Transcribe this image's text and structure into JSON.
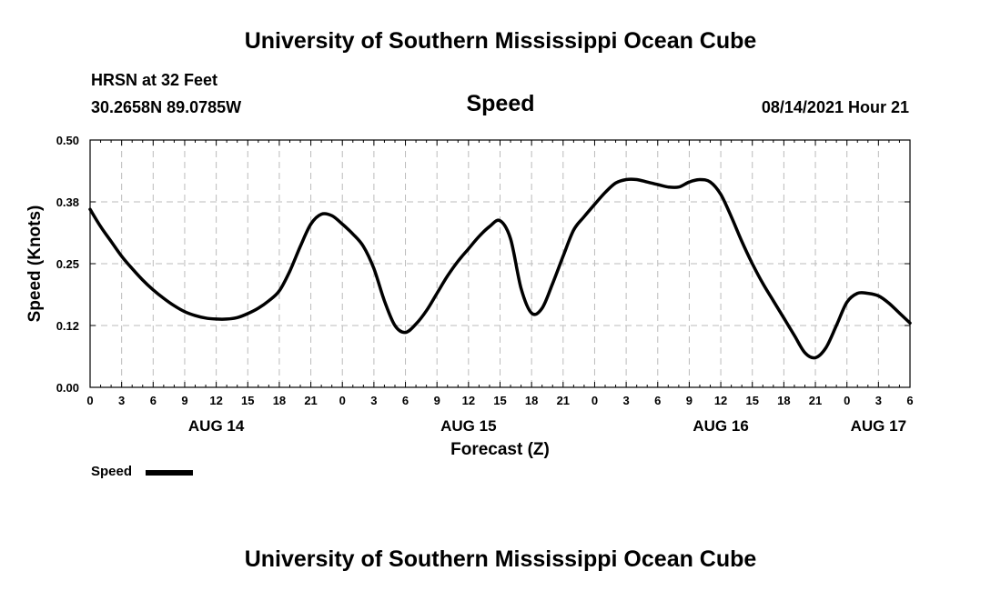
{
  "header": {
    "title_top": "University of Southern Mississippi Ocean Cube",
    "station": "HRSN at 32 Feet",
    "coords": "30.2658N  89.0785W",
    "datetime": "08/14/2021 Hour 21",
    "title_bottom": "University of Southern Mississippi Ocean Cube"
  },
  "legend": {
    "label": "Speed"
  },
  "chart_data": {
    "type": "line",
    "title": "Speed",
    "xlabel": "Forecast (Z)",
    "ylabel": "Speed (Knots)",
    "x_unit": "hours since AUG 14 00Z",
    "xlim": [
      0,
      78
    ],
    "ylim": [
      0,
      0.5
    ],
    "grid": true,
    "y_ticks": [
      0.0,
      0.125,
      0.25,
      0.375,
      0.5
    ],
    "y_tick_labels": [
      "0.00",
      "0.12",
      "0.25",
      "0.38",
      "0.50"
    ],
    "x_tick_labels": [
      "0",
      "3",
      "6",
      "9",
      "12",
      "15",
      "18",
      "21",
      "0",
      "3",
      "6",
      "9",
      "12",
      "15",
      "18",
      "21",
      "0",
      "3",
      "6",
      "9",
      "12",
      "15",
      "18",
      "21",
      "0",
      "3",
      "6"
    ],
    "date_labels": [
      {
        "label": "AUG 14",
        "hour": 12
      },
      {
        "label": "AUG 15",
        "hour": 36
      },
      {
        "label": "AUG 16",
        "hour": 60
      },
      {
        "label": "AUG 17",
        "hour": 75
      }
    ],
    "series": [
      {
        "name": "Speed",
        "color": "#000000",
        "x": [
          0,
          1,
          2,
          3,
          4,
          5,
          6,
          7,
          8,
          9,
          10,
          11,
          12,
          13,
          14,
          15,
          16,
          17,
          18,
          19,
          20,
          21,
          22,
          23,
          24,
          25,
          26,
          27,
          28,
          29,
          30,
          31,
          32,
          33,
          34,
          35,
          36,
          37,
          38,
          39,
          40,
          41,
          42,
          43,
          44,
          45,
          46,
          47,
          48,
          49,
          50,
          51,
          52,
          53,
          54,
          55,
          56,
          57,
          58,
          59,
          60,
          61,
          62,
          63,
          64,
          65,
          66,
          67,
          68,
          69,
          70,
          71,
          72,
          73,
          74,
          75,
          76,
          77,
          78
        ],
        "y": [
          0.36,
          0.325,
          0.295,
          0.265,
          0.24,
          0.217,
          0.197,
          0.18,
          0.165,
          0.153,
          0.145,
          0.14,
          0.138,
          0.138,
          0.141,
          0.149,
          0.16,
          0.175,
          0.195,
          0.235,
          0.285,
          0.33,
          0.35,
          0.347,
          0.33,
          0.31,
          0.285,
          0.24,
          0.175,
          0.125,
          0.111,
          0.128,
          0.155,
          0.19,
          0.225,
          0.255,
          0.28,
          0.305,
          0.325,
          0.337,
          0.3,
          0.2,
          0.15,
          0.16,
          0.21,
          0.265,
          0.318,
          0.345,
          0.37,
          0.394,
          0.413,
          0.42,
          0.42,
          0.415,
          0.41,
          0.405,
          0.405,
          0.415,
          0.42,
          0.415,
          0.39,
          0.345,
          0.295,
          0.25,
          0.21,
          0.175,
          0.14,
          0.105,
          0.07,
          0.06,
          0.08,
          0.125,
          0.172,
          0.19,
          0.19,
          0.185,
          0.17,
          0.15,
          0.13
        ]
      }
    ]
  }
}
